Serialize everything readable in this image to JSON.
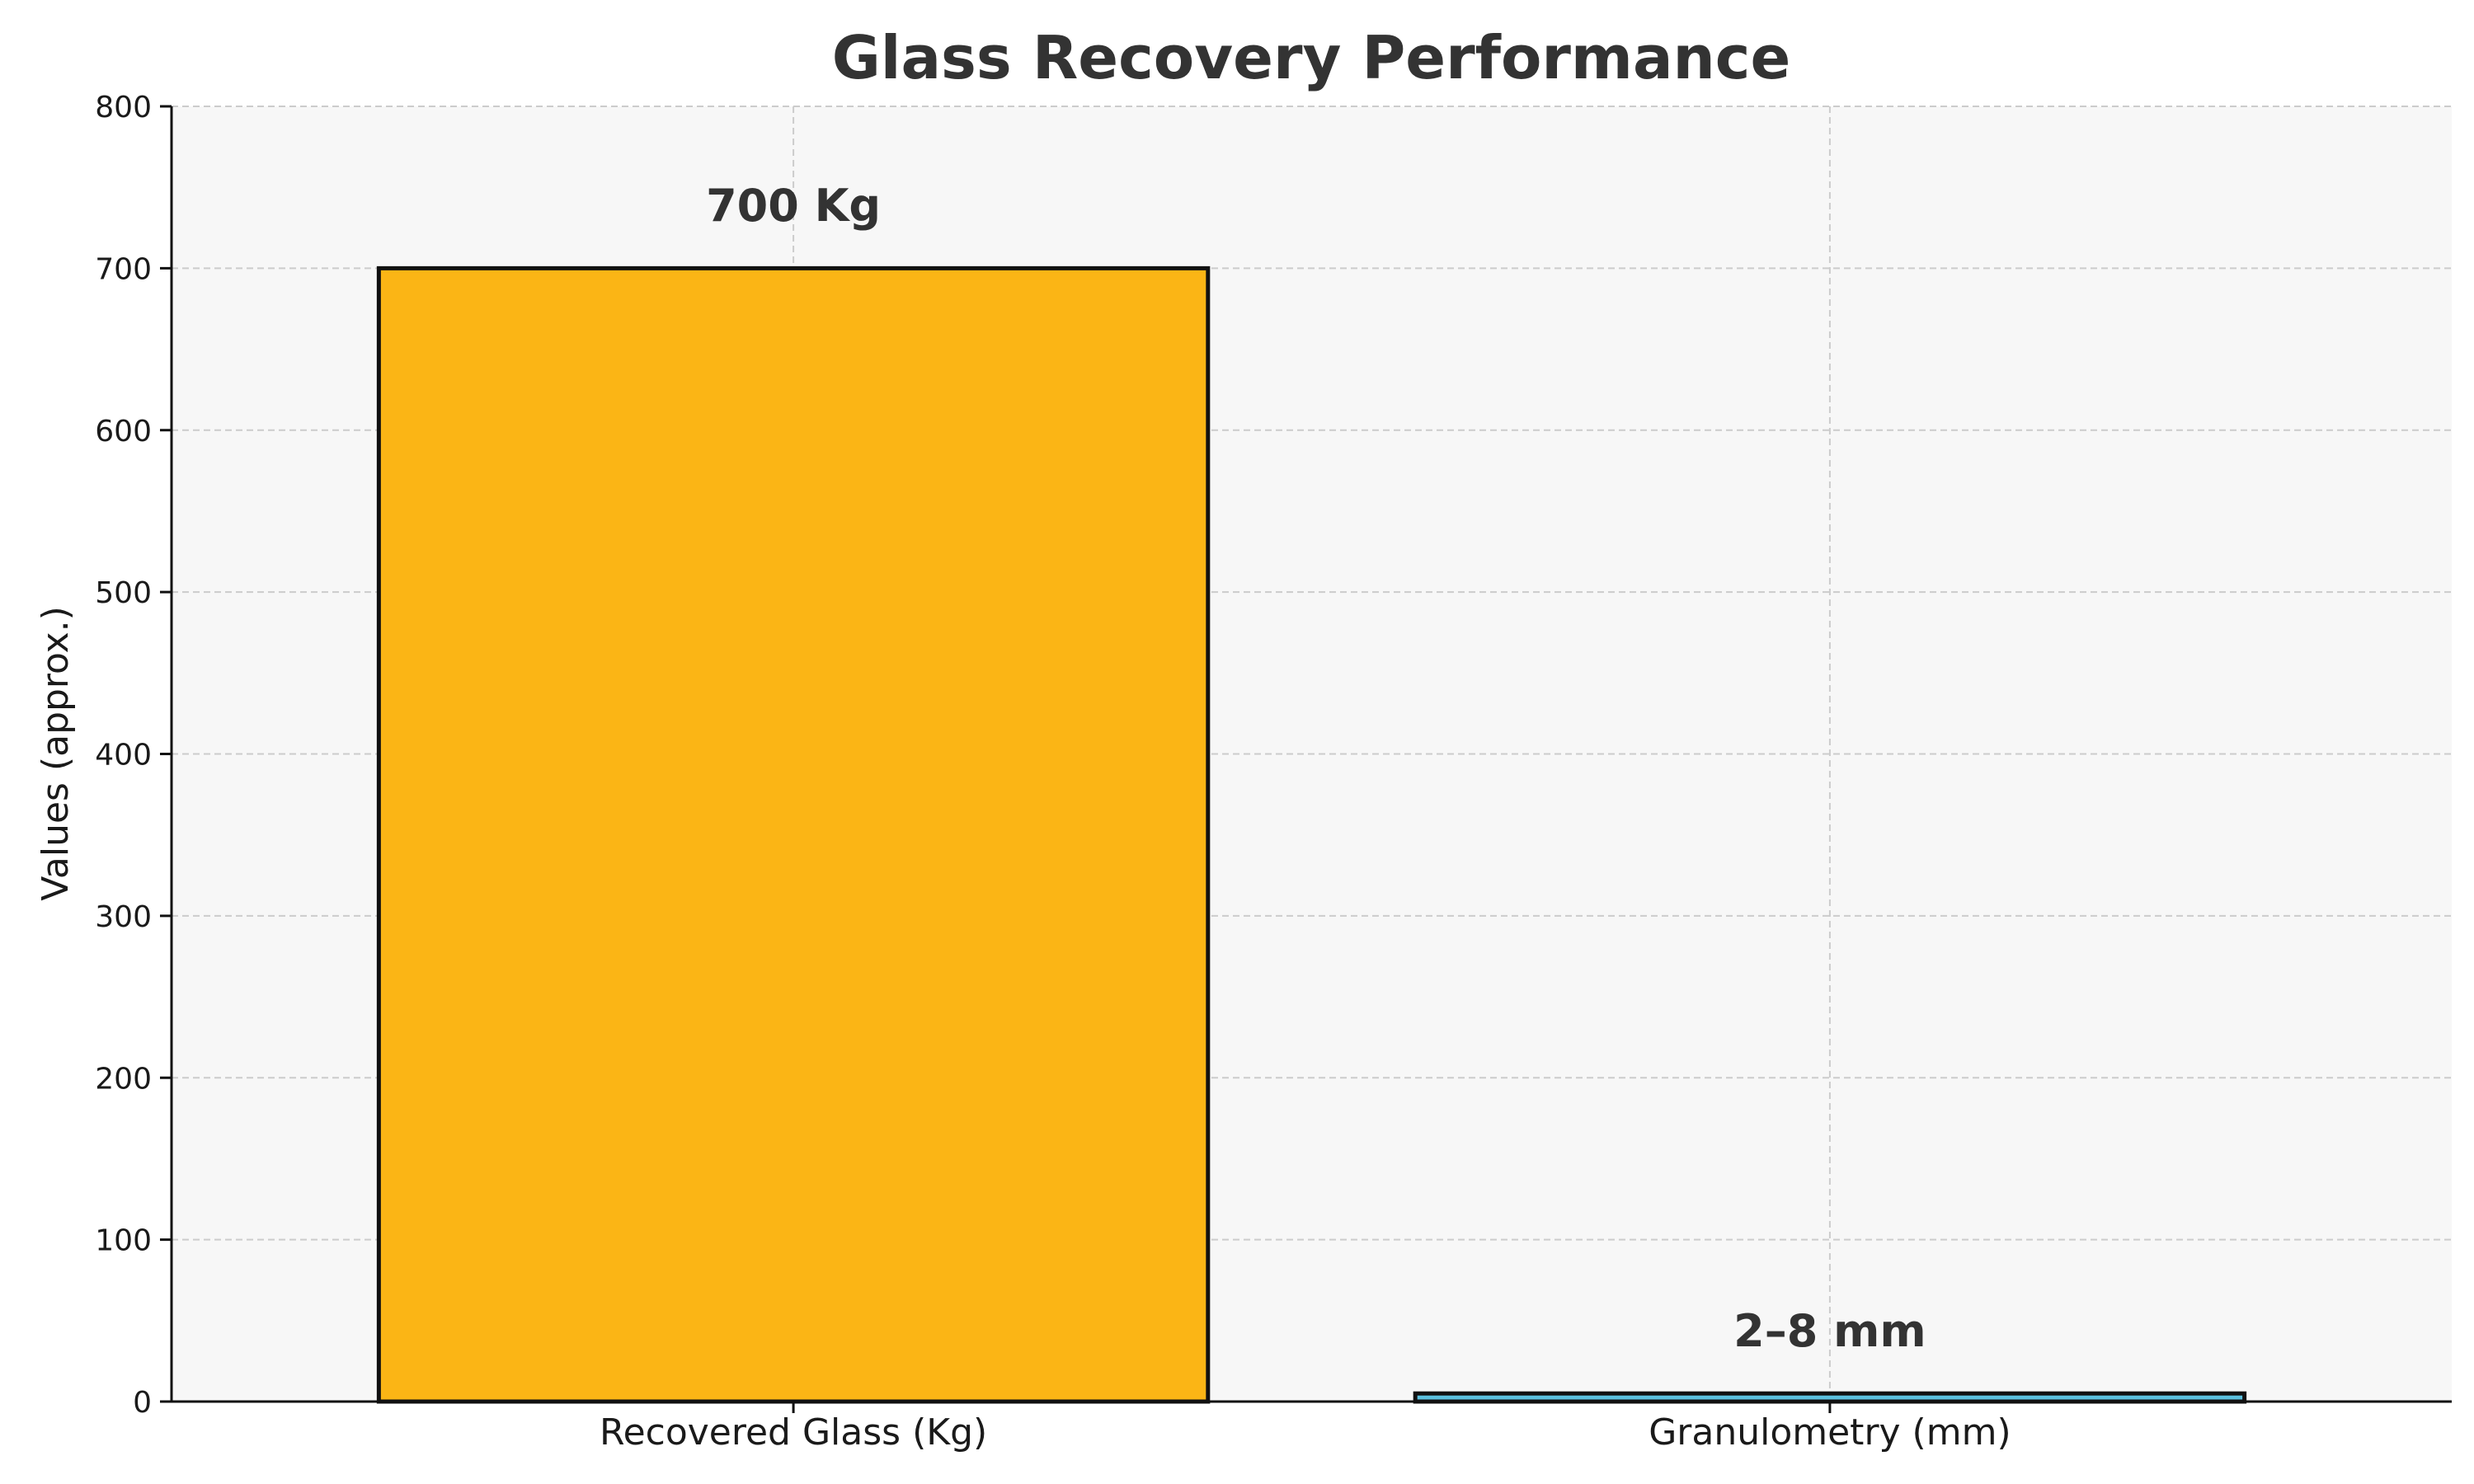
{
  "chart_data": {
    "type": "bar",
    "title": "Glass Recovery Performance",
    "xlabel": "",
    "ylabel": "Values (approx.)",
    "categories": [
      "Recovered Glass (Kg)",
      "Granulometry (mm)"
    ],
    "values": [
      700,
      5
    ],
    "bar_labels": [
      "700 Kg",
      "2–8 mm"
    ],
    "colors": [
      "#FBB515",
      "#5BC0DE"
    ],
    "ylim": [
      0,
      800
    ],
    "yticks": [
      "0",
      "100",
      "200",
      "300",
      "400",
      "500",
      "600",
      "700",
      "800"
    ],
    "grid": true,
    "background": "#F7F7F7"
  }
}
